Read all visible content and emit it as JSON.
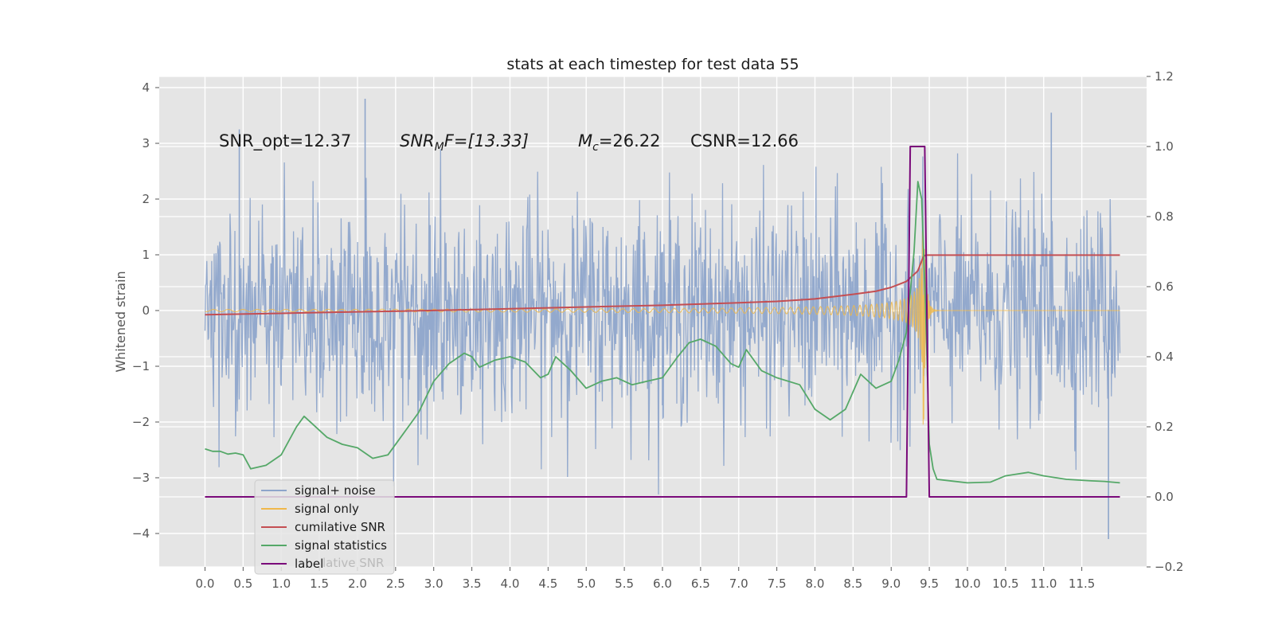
{
  "chart_data": {
    "type": "line",
    "title": "stats at each timestep for test data 55",
    "ylabel": "Whitened strain",
    "xlabel": "",
    "xlim": [
      -0.6,
      12.35
    ],
    "ylim": [
      -4.6,
      4.2
    ],
    "y2lim": [
      -0.2,
      1.2
    ],
    "grid": true,
    "legend_position": "lower-left",
    "x_ticks": [
      "0.0",
      "0.5",
      "1.0",
      "1.5",
      "2.0",
      "2.5",
      "3.0",
      "3.5",
      "4.0",
      "4.5",
      "5.0",
      "5.5",
      "6.0",
      "6.5",
      "7.0",
      "7.5",
      "8.0",
      "8.5",
      "9.0",
      "9.5",
      "10.0",
      "10.5",
      "11.0",
      "11.5"
    ],
    "y_ticks": [
      "4",
      "3",
      "2",
      "1",
      "0",
      "−1",
      "−2",
      "−3",
      "−4"
    ],
    "y2_ticks": [
      "1.2",
      "1.0",
      "0.8",
      "0.6",
      "0.4",
      "0.2",
      "0.0",
      "−0.2"
    ],
    "annotations": [
      {
        "label": "SNR_opt=12.37"
      },
      {
        "label": "SNR",
        "sub": "M",
        "tail": "F=[13.33]"
      },
      {
        "label": "M",
        "sub": "c",
        "tail": "=26.22"
      },
      {
        "label": "CSNR=12.66"
      }
    ],
    "legend": [
      "signal+ noise",
      "signal only",
      "cumilative SNR",
      "signal statistics",
      "label"
    ],
    "legend_ghost": "lative SNR",
    "series": [
      {
        "name": "signal+ noise",
        "axis": "left",
        "kind": "noise",
        "x_range": [
          0.0,
          12.0
        ],
        "typical_peak": 2.4,
        "max": 3.8,
        "min": -4.1
      },
      {
        "name": "signal only",
        "axis": "left",
        "kind": "chirp",
        "x_range": [
          0.0,
          12.0
        ],
        "merger_time": 9.42,
        "peak_amplitude": 2.6
      },
      {
        "name": "cumilative SNR",
        "axis": "right",
        "x": [
          0.0,
          1.0,
          2.0,
          3.0,
          4.0,
          5.0,
          6.0,
          7.0,
          7.5,
          8.0,
          8.5,
          8.8,
          9.0,
          9.2,
          9.35,
          9.42,
          9.45,
          9.5,
          10.0,
          11.0,
          12.0
        ],
        "y": [
          0.52,
          0.524,
          0.528,
          0.532,
          0.537,
          0.542,
          0.547,
          0.554,
          0.558,
          0.565,
          0.578,
          0.587,
          0.598,
          0.615,
          0.645,
          0.685,
          0.69,
          0.69,
          0.69,
          0.69,
          0.69
        ]
      },
      {
        "name": "signal statistics",
        "axis": "right",
        "x": [
          0.0,
          0.1,
          0.2,
          0.3,
          0.4,
          0.5,
          0.6,
          0.8,
          1.0,
          1.2,
          1.3,
          1.4,
          1.6,
          1.8,
          2.0,
          2.2,
          2.4,
          2.6,
          2.8,
          3.0,
          3.2,
          3.4,
          3.5,
          3.6,
          3.8,
          4.0,
          4.2,
          4.4,
          4.5,
          4.6,
          4.8,
          5.0,
          5.2,
          5.4,
          5.6,
          5.8,
          6.0,
          6.2,
          6.35,
          6.5,
          6.7,
          6.9,
          7.0,
          7.1,
          7.3,
          7.5,
          7.8,
          8.0,
          8.2,
          8.4,
          8.6,
          8.8,
          9.0,
          9.1,
          9.2,
          9.3,
          9.35,
          9.4,
          9.45,
          9.5,
          9.55,
          9.6,
          9.8,
          10.0,
          10.3,
          10.5,
          10.8,
          11.0,
          11.3,
          11.6,
          11.8,
          12.0
        ],
        "y": [
          0.137,
          0.13,
          0.13,
          0.122,
          0.125,
          0.12,
          0.08,
          0.09,
          0.12,
          0.2,
          0.23,
          0.21,
          0.17,
          0.15,
          0.14,
          0.11,
          0.12,
          0.18,
          0.24,
          0.33,
          0.38,
          0.41,
          0.4,
          0.37,
          0.39,
          0.4,
          0.385,
          0.34,
          0.35,
          0.4,
          0.36,
          0.31,
          0.33,
          0.34,
          0.32,
          0.33,
          0.34,
          0.4,
          0.44,
          0.45,
          0.43,
          0.38,
          0.37,
          0.42,
          0.36,
          0.34,
          0.32,
          0.25,
          0.22,
          0.25,
          0.35,
          0.31,
          0.33,
          0.39,
          0.47,
          0.7,
          0.9,
          0.85,
          0.55,
          0.15,
          0.08,
          0.05,
          0.045,
          0.04,
          0.042,
          0.06,
          0.07,
          0.06,
          0.05,
          0.046,
          0.044,
          0.04
        ]
      },
      {
        "name": "label",
        "axis": "right",
        "x": [
          0.0,
          9.2,
          9.25,
          9.44,
          9.5,
          12.0
        ],
        "y": [
          0.0,
          0.0,
          1.0,
          1.0,
          0.0,
          0.0
        ]
      }
    ],
    "colors": {
      "noise": "#8ea5cb",
      "signal": "#f0b84a",
      "cum_snr": "#c44e52",
      "stats": "#55a868",
      "label": "#7a0a7a",
      "axes_bg": "#e5e5e5",
      "grid": "#ffffff",
      "text": "#555555"
    }
  }
}
